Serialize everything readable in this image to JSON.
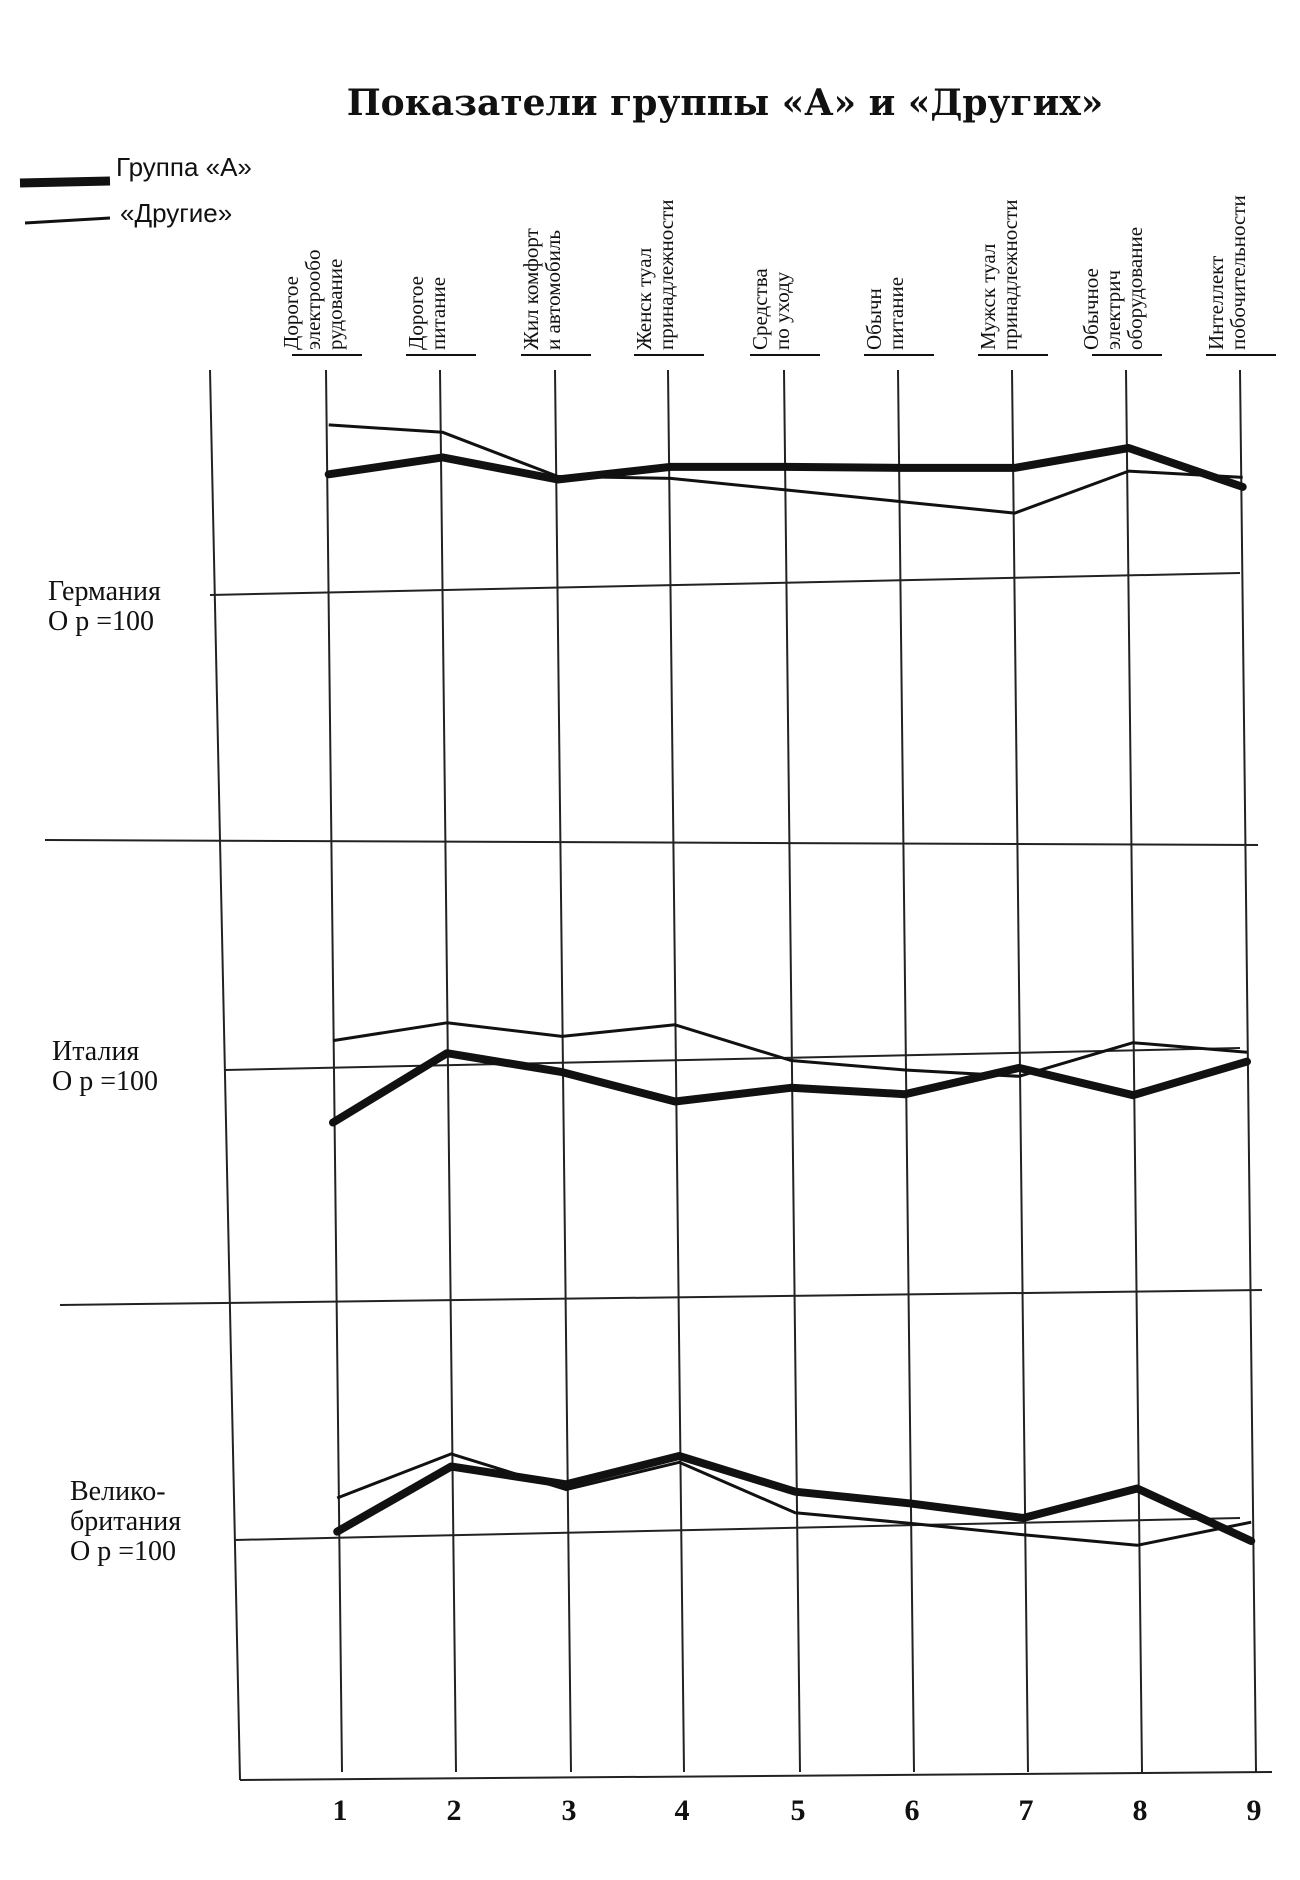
{
  "chart_data": {
    "type": "line",
    "title": "Показатели группы «А» и «Других»",
    "legend": [
      {
        "label": "Группа «А»",
        "style": "thick"
      },
      {
        "label": "«Другие»",
        "style": "thin"
      }
    ],
    "legend_position": "top-left",
    "x": [
      1,
      2,
      3,
      4,
      5,
      6,
      7,
      8,
      9
    ],
    "tick_labels": [
      "1",
      "2",
      "3",
      "4",
      "5",
      "6",
      "7",
      "8",
      "9"
    ],
    "categories": [
      [
        "Дорогое",
        "электрообо",
        "рудование"
      ],
      [
        "Дорогое",
        "питание"
      ],
      [
        "Жил комфорт",
        "и автомобиль"
      ],
      [
        "Женск туал",
        "принадлежности"
      ],
      [
        "Средства",
        "по уходу"
      ],
      [
        "Обычн",
        "питание"
      ],
      [
        "Мужск туал",
        "принадлежности"
      ],
      [
        "Обычное",
        "электрич",
        "оборудование"
      ],
      [
        "Интеллект",
        "побочительности"
      ]
    ],
    "panels": [
      {
        "country": [
          "Германия",
          "О р =100"
        ],
        "series": [
          {
            "name": "Группа «А»",
            "values": [
              115,
              131,
              110,
              122,
              122,
              121,
              121,
              140,
              103
            ]
          },
          {
            "name": "«Другие»",
            "values": [
              162,
              155,
              113,
              111,
              100,
              89,
              78,
              118,
              112
            ]
          }
        ]
      },
      {
        "country": [
          "Италия",
          "О р =100"
        ],
        "series": [
          {
            "name": "Группа «А»",
            "values": [
              -50,
              16,
              -2,
              -30,
              -17,
              -23,
              2,
              -24,
              8
            ]
          },
          {
            "name": "«Другие»",
            "values": [
              28,
              45,
              32,
              43,
              9,
              0,
              -6,
              26,
              17
            ]
          }
        ]
      },
      {
        "country": [
          "Велико-",
          "британия",
          "О р =100"
        ],
        "series": [
          {
            "name": "Группа «А»",
            "values": [
              8,
              70,
              53,
              80,
              46,
              35,
              21,
              49,
              -1
            ]
          },
          {
            "name": "«Другие»",
            "values": [
              40,
              82,
              48,
              74,
              26,
              16,
              5,
              -5,
              17
            ]
          }
        ]
      }
    ]
  }
}
